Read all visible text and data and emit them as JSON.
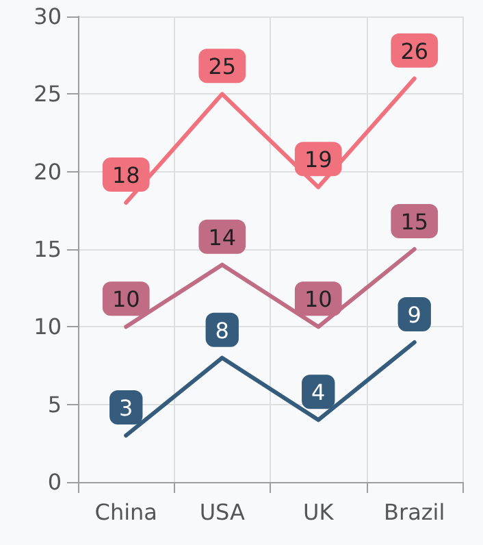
{
  "chart_data": {
    "type": "line",
    "categories": [
      "China",
      "USA",
      "UK",
      "Brazil"
    ],
    "series": [
      {
        "color": "#f0727f",
        "values": [
          18,
          25,
          19,
          26
        ]
      },
      {
        "color": "#c06c84",
        "values": [
          10,
          14,
          10,
          15
        ]
      },
      {
        "color": "#355c7d",
        "values": [
          3,
          8,
          4,
          9
        ]
      }
    ],
    "ylim": [
      0,
      30
    ],
    "yticks": [
      0,
      5,
      10,
      15,
      20,
      25,
      30
    ],
    "grid": true,
    "marker": "none",
    "line_style": "solid",
    "data_labels": true
  }
}
